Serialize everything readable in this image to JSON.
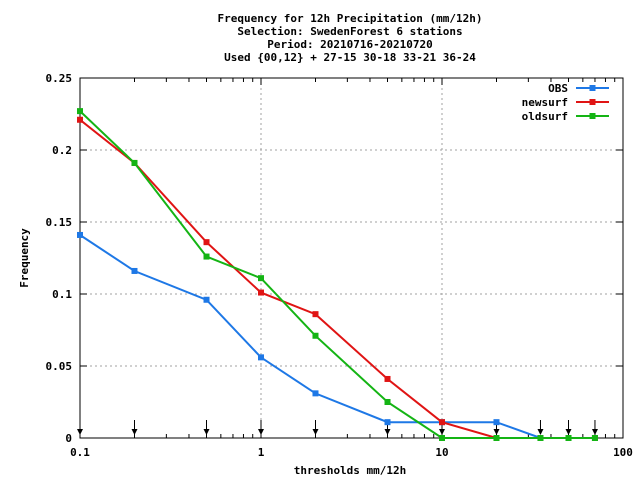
{
  "chart_data": {
    "type": "line",
    "title_lines": [
      "Frequency  for 12h Precipitation (mm/12h)",
      "Selection: SwedenForest      6 stations",
      "Period: 20210716-20210720",
      "Used {00,12} + 27-15 30-18 33-21 36-24"
    ],
    "xlabel": "thresholds mm/12h",
    "ylabel": "Frequency",
    "x_scale": "log",
    "xlim": [
      0.1,
      100
    ],
    "ylim": [
      0,
      0.25
    ],
    "x_ticks": [
      0.1,
      1,
      10,
      100
    ],
    "x_tick_labels": [
      "0.1",
      "1",
      "10",
      "100"
    ],
    "y_ticks": [
      0,
      0.05,
      0.1,
      0.15,
      0.2,
      0.25
    ],
    "y_tick_labels": [
      "0",
      "0.05",
      "0.1",
      "0.15",
      "0.2",
      "0.25"
    ],
    "grid": true,
    "legend_position": "top-right",
    "threshold_markers": [
      0.1,
      0.2,
      0.5,
      1,
      2,
      5,
      10,
      20,
      35,
      50,
      70
    ],
    "series": [
      {
        "name": "OBS",
        "color": "#1e78e6",
        "x": [
          0.1,
          0.2,
          0.5,
          1,
          2,
          5,
          10,
          20,
          35,
          50,
          70
        ],
        "y": [
          0.141,
          0.116,
          0.096,
          0.056,
          0.031,
          0.011,
          0.011,
          0.011,
          0.0,
          0.0,
          0.0
        ]
      },
      {
        "name": "newsurf",
        "color": "#e01414",
        "x": [
          0.1,
          0.2,
          0.5,
          1,
          2,
          5,
          10,
          20,
          35,
          50,
          70
        ],
        "y": [
          0.221,
          0.191,
          0.136,
          0.101,
          0.086,
          0.041,
          0.011,
          0.0,
          0.0,
          0.0,
          0.0
        ]
      },
      {
        "name": "oldsurf",
        "color": "#14b414",
        "x": [
          0.1,
          0.2,
          0.5,
          1,
          2,
          5,
          10,
          20,
          35,
          50,
          70
        ],
        "y": [
          0.227,
          0.191,
          0.126,
          0.111,
          0.071,
          0.025,
          0.0,
          0.0,
          0.0,
          0.0,
          0.0
        ]
      }
    ]
  }
}
